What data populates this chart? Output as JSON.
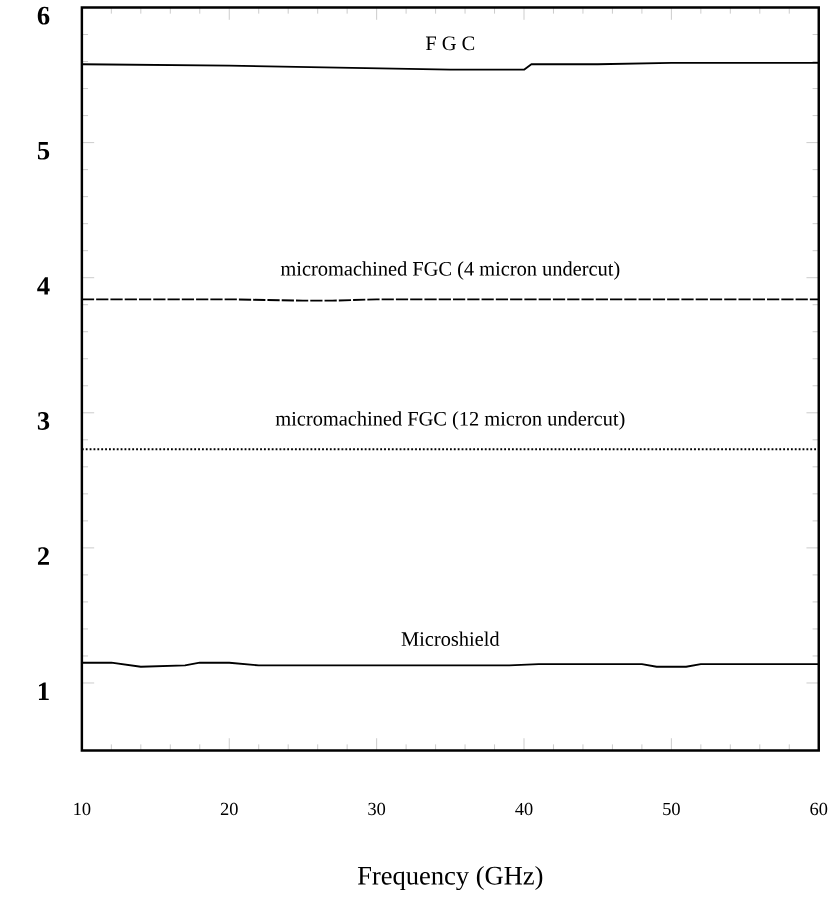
{
  "chart_data": {
    "type": "line",
    "xlabel": "Frequency  (GHz)",
    "xlim": [
      10,
      60
    ],
    "ylim": [
      0.5,
      6
    ],
    "xticks": [
      10,
      20,
      30,
      40,
      50,
      60
    ],
    "yticks": [
      1,
      2,
      3,
      4,
      5,
      6
    ],
    "grid": false,
    "marker": "none",
    "series": [
      {
        "name": "F G C",
        "color": "#000000",
        "line_style": "solid",
        "x": [
          10,
          20,
          30,
          35,
          40,
          40.5,
          45,
          50,
          60
        ],
        "values": [
          5.58,
          5.57,
          5.55,
          5.54,
          5.54,
          5.58,
          5.58,
          5.59,
          5.59
        ]
      },
      {
        "name": "micromachined FGC (4 micron undercut)",
        "color": "#000000",
        "line_style": "dashed",
        "x": [
          10,
          20,
          25,
          27,
          30,
          40,
          50,
          60
        ],
        "values": [
          3.84,
          3.84,
          3.83,
          3.83,
          3.84,
          3.84,
          3.84,
          3.84
        ]
      },
      {
        "name": "micromachined FGC (12 micron undercut)",
        "color": "#000000",
        "line_style": "dotted",
        "x": [
          10,
          20,
          30,
          40,
          48,
          50,
          60
        ],
        "values": [
          2.73,
          2.73,
          2.73,
          2.73,
          2.73,
          2.73,
          2.73
        ]
      },
      {
        "name": "Microshield",
        "color": "#000000",
        "line_style": "solid",
        "x": [
          10,
          12,
          14,
          17,
          18,
          20,
          22,
          30,
          39,
          41,
          48,
          49,
          51,
          52,
          60
        ],
        "values": [
          1.15,
          1.15,
          1.12,
          1.13,
          1.15,
          1.15,
          1.13,
          1.13,
          1.13,
          1.14,
          1.14,
          1.12,
          1.12,
          1.14,
          1.14
        ]
      }
    ]
  }
}
